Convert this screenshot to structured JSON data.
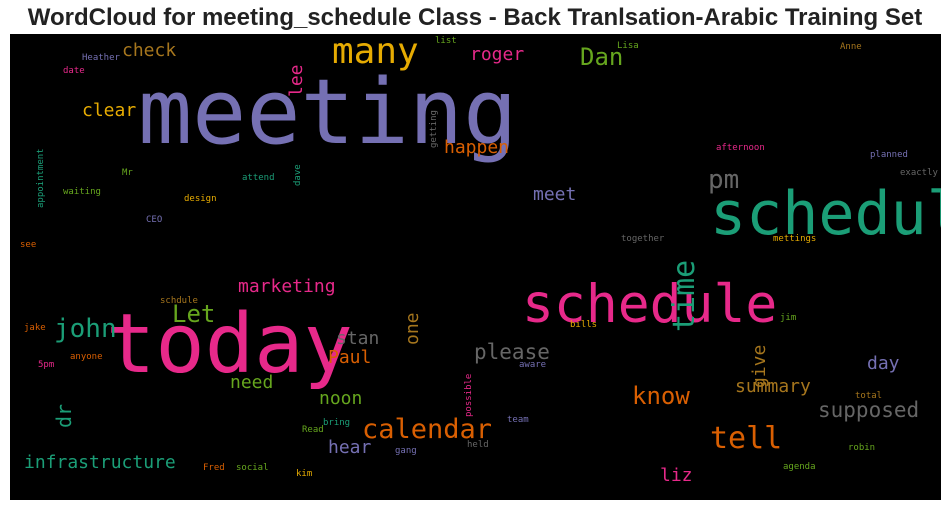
{
  "chart_data": {
    "type": "wordcloud",
    "title": "WordCloud for meeting_schedule Class - Back Tranlsation-Arabic Training Set",
    "background": "#000000",
    "words": [
      {
        "text": "meeting",
        "weight": 90,
        "color": "#7570b3",
        "orientation": "horizontal"
      },
      {
        "text": "today",
        "weight": 82,
        "color": "#e7298a",
        "orientation": "horizontal"
      },
      {
        "text": "scheduled",
        "weight": 60,
        "color": "#1b9e77",
        "orientation": "horizontal"
      },
      {
        "text": "schedule",
        "weight": 53,
        "color": "#e7298a",
        "orientation": "horizontal"
      },
      {
        "text": "many",
        "weight": 36,
        "color": "#e6ab02",
        "orientation": "horizontal"
      },
      {
        "text": "time",
        "weight": 30,
        "color": "#1b9e77",
        "orientation": "vertical"
      },
      {
        "text": "tell",
        "weight": 30,
        "color": "#d95f02",
        "orientation": "horizontal"
      },
      {
        "text": "calendar",
        "weight": 27,
        "color": "#d95f02",
        "orientation": "horizontal"
      },
      {
        "text": "john",
        "weight": 26,
        "color": "#1b9e77",
        "orientation": "horizontal"
      },
      {
        "text": "pm",
        "weight": 26,
        "color": "#666666",
        "orientation": "horizontal"
      },
      {
        "text": "Dan",
        "weight": 24,
        "color": "#66a61e",
        "orientation": "horizontal"
      },
      {
        "text": "Let",
        "weight": 24,
        "color": "#66a61e",
        "orientation": "horizontal"
      },
      {
        "text": "know",
        "weight": 24,
        "color": "#d95f02",
        "orientation": "horizontal"
      },
      {
        "text": "please",
        "weight": 21,
        "color": "#666666",
        "orientation": "horizontal"
      },
      {
        "text": "supposed",
        "weight": 21,
        "color": "#666666",
        "orientation": "horizontal"
      },
      {
        "text": "dr",
        "weight": 20,
        "color": "#1b9e77",
        "orientation": "vertical"
      },
      {
        "text": "meet",
        "weight": 18,
        "color": "#7570b3",
        "orientation": "horizontal"
      },
      {
        "text": "happen",
        "weight": 18,
        "color": "#d95f02",
        "orientation": "horizontal"
      },
      {
        "text": "roger",
        "weight": 18,
        "color": "#e7298a",
        "orientation": "horizontal"
      },
      {
        "text": "clear",
        "weight": 18,
        "color": "#e6ab02",
        "orientation": "horizontal"
      },
      {
        "text": "check",
        "weight": 18,
        "color": "#a6761d",
        "orientation": "horizontal"
      },
      {
        "text": "lee",
        "weight": 18,
        "color": "#e7298a",
        "orientation": "vertical"
      },
      {
        "text": "marketing",
        "weight": 18,
        "color": "#e7298a",
        "orientation": "horizontal"
      },
      {
        "text": "one",
        "weight": 18,
        "color": "#a6761d",
        "orientation": "vertical"
      },
      {
        "text": "stan",
        "weight": 18,
        "color": "#666666",
        "orientation": "horizontal"
      },
      {
        "text": "Paul",
        "weight": 18,
        "color": "#d95f02",
        "orientation": "horizontal"
      },
      {
        "text": "need",
        "weight": 18,
        "color": "#66a61e",
        "orientation": "horizontal"
      },
      {
        "text": "noon",
        "weight": 18,
        "color": "#66a61e",
        "orientation": "horizontal"
      },
      {
        "text": "hear",
        "weight": 18,
        "color": "#7570b3",
        "orientation": "horizontal"
      },
      {
        "text": "infrastructure",
        "weight": 18,
        "color": "#1b9e77",
        "orientation": "horizontal"
      },
      {
        "text": "liz",
        "weight": 18,
        "color": "#e7298a",
        "orientation": "horizontal"
      },
      {
        "text": "day",
        "weight": 18,
        "color": "#7570b3",
        "orientation": "horizontal"
      },
      {
        "text": "summary",
        "weight": 18,
        "color": "#a6761d",
        "orientation": "horizontal"
      },
      {
        "text": "give",
        "weight": 18,
        "color": "#a6761d",
        "orientation": "vertical"
      },
      {
        "text": "getting",
        "weight": 9,
        "color": "#666666",
        "orientation": "vertical"
      },
      {
        "text": "list",
        "weight": 9,
        "color": "#66a61e",
        "orientation": "horizontal"
      },
      {
        "text": "Lisa",
        "weight": 9,
        "color": "#66a61e",
        "orientation": "horizontal"
      },
      {
        "text": "Anne",
        "weight": 9,
        "color": "#a6761d",
        "orientation": "horizontal"
      },
      {
        "text": "Heather",
        "weight": 9,
        "color": "#7570b3",
        "orientation": "horizontal"
      },
      {
        "text": "date",
        "weight": 9,
        "color": "#e7298a",
        "orientation": "horizontal"
      },
      {
        "text": "appointment",
        "weight": 9,
        "color": "#1b9e77",
        "orientation": "vertical"
      },
      {
        "text": "afternoon",
        "weight": 9,
        "color": "#e7298a",
        "orientation": "horizontal"
      },
      {
        "text": "planned",
        "weight": 9,
        "color": "#7570b3",
        "orientation": "horizontal"
      },
      {
        "text": "exactly",
        "weight": 9,
        "color": "#666666",
        "orientation": "horizontal"
      },
      {
        "text": "Mr",
        "weight": 9,
        "color": "#66a61e",
        "orientation": "horizontal"
      },
      {
        "text": "attend",
        "weight": 9,
        "color": "#1b9e77",
        "orientation": "horizontal"
      },
      {
        "text": "dave",
        "weight": 9,
        "color": "#1b9e77",
        "orientation": "vertical"
      },
      {
        "text": "waiting",
        "weight": 9,
        "color": "#66a61e",
        "orientation": "horizontal"
      },
      {
        "text": "design",
        "weight": 9,
        "color": "#e6ab02",
        "orientation": "horizontal"
      },
      {
        "text": "CEO",
        "weight": 9,
        "color": "#7570b3",
        "orientation": "horizontal"
      },
      {
        "text": "together",
        "weight": 9,
        "color": "#666666",
        "orientation": "horizontal"
      },
      {
        "text": "mettings",
        "weight": 9,
        "color": "#e6ab02",
        "orientation": "horizontal"
      },
      {
        "text": "see",
        "weight": 9,
        "color": "#d95f02",
        "orientation": "horizontal"
      },
      {
        "text": "schdule",
        "weight": 9,
        "color": "#a6761d",
        "orientation": "horizontal"
      },
      {
        "text": "jake",
        "weight": 9,
        "color": "#d95f02",
        "orientation": "horizontal"
      },
      {
        "text": "jim",
        "weight": 9,
        "color": "#66a61e",
        "orientation": "horizontal"
      },
      {
        "text": "bills",
        "weight": 9,
        "color": "#e6ab02",
        "orientation": "horizontal"
      },
      {
        "text": "5pm",
        "weight": 9,
        "color": "#e7298a",
        "orientation": "horizontal"
      },
      {
        "text": "anyone",
        "weight": 9,
        "color": "#d95f02",
        "orientation": "horizontal"
      },
      {
        "text": "aware",
        "weight": 9,
        "color": "#7570b3",
        "orientation": "horizontal"
      },
      {
        "text": "possible",
        "weight": 9,
        "color": "#e7298a",
        "orientation": "vertical"
      },
      {
        "text": "total",
        "weight": 9,
        "color": "#a6761d",
        "orientation": "horizontal"
      },
      {
        "text": "Read",
        "weight": 9,
        "color": "#66a61e",
        "orientation": "horizontal"
      },
      {
        "text": "bring",
        "weight": 9,
        "color": "#1b9e77",
        "orientation": "horizontal"
      },
      {
        "text": "team",
        "weight": 9,
        "color": "#7570b3",
        "orientation": "horizontal"
      },
      {
        "text": "held",
        "weight": 9,
        "color": "#666666",
        "orientation": "horizontal"
      },
      {
        "text": "gang",
        "weight": 9,
        "color": "#7570b3",
        "orientation": "horizontal"
      },
      {
        "text": "robin",
        "weight": 9,
        "color": "#66a61e",
        "orientation": "horizontal"
      },
      {
        "text": "agenda",
        "weight": 9,
        "color": "#66a61e",
        "orientation": "horizontal"
      },
      {
        "text": "Fred",
        "weight": 9,
        "color": "#d95f02",
        "orientation": "horizontal"
      },
      {
        "text": "social",
        "weight": 9,
        "color": "#66a61e",
        "orientation": "horizontal"
      },
      {
        "text": "kim",
        "weight": 9,
        "color": "#e6ab02",
        "orientation": "horizontal"
      }
    ]
  }
}
